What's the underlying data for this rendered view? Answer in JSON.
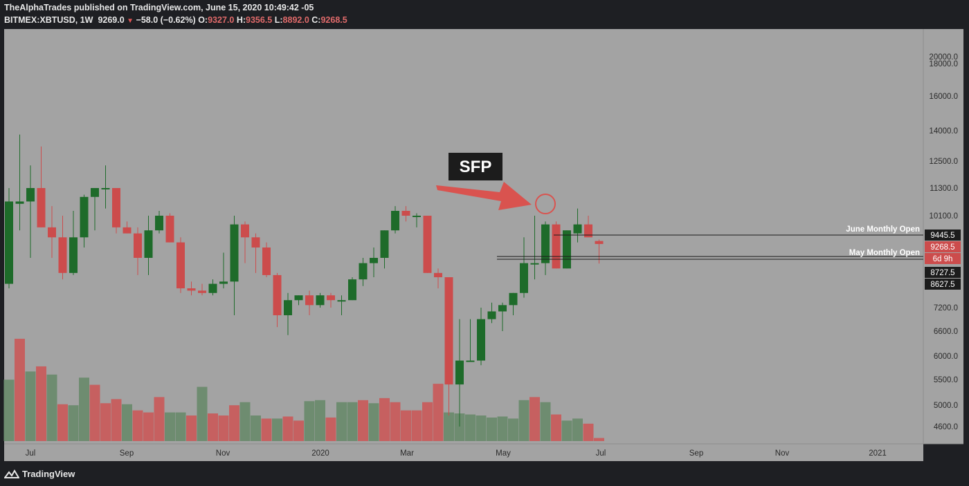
{
  "header": {
    "publisher": "TheAlphaTrades published on TradingView.com, June 15, 2020 10:49:42 -05",
    "symbol": "BITMEX:XBTUSD, 1W",
    "last": "9269.0",
    "change": "−58.0 (−0.62%)",
    "o_label": "O:",
    "o": "9327.0",
    "h_label": "H:",
    "h": "9356.5",
    "l_label": "L:",
    "l": "8892.0",
    "c_label": "C:",
    "c": "9268.5"
  },
  "footer": {
    "brand": "TradingView",
    "logo_icon": "tradingview-logo-icon"
  },
  "colors": {
    "background": "#a3a3a3",
    "up": "#1e6b2a",
    "down": "#cc4c4c",
    "vol_up": "#6e8c70",
    "vol_down": "#c66060",
    "axis_bg": "#a3a3a3",
    "annotation_arrow": "#d9534f"
  },
  "annotations": {
    "sfp_label": "SFP",
    "june_open_label": "June Monthly Open",
    "may_open_label": "May Monthly Open"
  },
  "chart_data": {
    "type": "candlestick",
    "price_axis_labels": [
      "20000.0",
      "18000.0",
      "16000.0",
      "14000.0",
      "12500.0",
      "11300.0",
      "10100.0",
      "7200.0",
      "6600.0",
      "6000.0",
      "5500.0",
      "5000.0",
      "4600.0"
    ],
    "price_badges": [
      {
        "text": "9445.5",
        "style": "dark"
      },
      {
        "text": "9268.5",
        "style": "red"
      },
      {
        "text": "6d 9h",
        "style": "red"
      },
      {
        "text": "8727.5",
        "style": "dark"
      },
      {
        "text": "8627.5",
        "style": "dark"
      }
    ],
    "time_axis_labels": [
      "Jul",
      "Sep",
      "Nov",
      "2020",
      "Mar",
      "May",
      "Jul",
      "Sep",
      "Nov",
      "2021"
    ],
    "levels": [
      {
        "name": "June Monthly Open",
        "value": 9445.5
      },
      {
        "name": "May Monthly Open",
        "value": 8727.5
      },
      {
        "name": "May Monthly Open low",
        "value": 8627.5
      }
    ],
    "candles": [
      {
        "o": 8200,
        "h": 11300,
        "l": 8000,
        "c": 10700
      },
      {
        "o": 10600,
        "h": 13800,
        "l": 9600,
        "c": 10700
      },
      {
        "o": 10700,
        "h": 12300,
        "l": 9000,
        "c": 11300
      },
      {
        "o": 11300,
        "h": 13200,
        "l": 9700,
        "c": 9700
      },
      {
        "o": 9700,
        "h": 10500,
        "l": 9000,
        "c": 9400
      },
      {
        "o": 9400,
        "h": 10100,
        "l": 8400,
        "c": 8700
      },
      {
        "o": 8700,
        "h": 10300,
        "l": 8600,
        "c": 9400
      },
      {
        "o": 9400,
        "h": 11000,
        "l": 9200,
        "c": 10900
      },
      {
        "o": 10900,
        "h": 11300,
        "l": 9600,
        "c": 11300
      },
      {
        "o": 11300,
        "h": 12300,
        "l": 10400,
        "c": 11300
      },
      {
        "o": 11300,
        "h": 11300,
        "l": 9500,
        "c": 9700
      },
      {
        "o": 9700,
        "h": 9900,
        "l": 9500,
        "c": 9500
      },
      {
        "o": 9500,
        "h": 9700,
        "l": 8600,
        "c": 9000
      },
      {
        "o": 9000,
        "h": 10100,
        "l": 8600,
        "c": 9600
      },
      {
        "o": 9600,
        "h": 10300,
        "l": 9500,
        "c": 10100
      },
      {
        "o": 10100,
        "h": 10200,
        "l": 9300,
        "c": 9300
      },
      {
        "o": 9300,
        "h": 9400,
        "l": 7800,
        "c": 8000
      },
      {
        "o": 8000,
        "h": 8300,
        "l": 7700,
        "c": 7900
      },
      {
        "o": 7900,
        "h": 8200,
        "l": 7700,
        "c": 7800
      },
      {
        "o": 7800,
        "h": 8400,
        "l": 7700,
        "c": 8200
      },
      {
        "o": 8200,
        "h": 9100,
        "l": 8000,
        "c": 8300
      },
      {
        "o": 8300,
        "h": 10100,
        "l": 7000,
        "c": 9800
      },
      {
        "o": 9800,
        "h": 9900,
        "l": 8900,
        "c": 9400
      },
      {
        "o": 9400,
        "h": 9500,
        "l": 8700,
        "c": 9200
      },
      {
        "o": 9200,
        "h": 9300,
        "l": 8500,
        "c": 8600
      },
      {
        "o": 8600,
        "h": 8700,
        "l": 6700,
        "c": 7000
      },
      {
        "o": 7000,
        "h": 7800,
        "l": 6500,
        "c": 7500
      },
      {
        "o": 7500,
        "h": 7700,
        "l": 7300,
        "c": 7700
      },
      {
        "o": 7700,
        "h": 7900,
        "l": 7000,
        "c": 7300
      },
      {
        "o": 7300,
        "h": 7800,
        "l": 7200,
        "c": 7700
      },
      {
        "o": 7700,
        "h": 7800,
        "l": 7200,
        "c": 7500
      },
      {
        "o": 7500,
        "h": 7700,
        "l": 7000,
        "c": 7500
      },
      {
        "o": 7500,
        "h": 8500,
        "l": 7500,
        "c": 8400
      },
      {
        "o": 8400,
        "h": 9000,
        "l": 8100,
        "c": 8900
      },
      {
        "o": 8900,
        "h": 9200,
        "l": 8500,
        "c": 9000
      },
      {
        "o": 9000,
        "h": 9600,
        "l": 8800,
        "c": 9600
      },
      {
        "o": 9600,
        "h": 10500,
        "l": 9500,
        "c": 10300
      },
      {
        "o": 10300,
        "h": 10500,
        "l": 9900,
        "c": 10100
      },
      {
        "o": 10100,
        "h": 10200,
        "l": 9700,
        "c": 10100
      },
      {
        "o": 10100,
        "h": 10100,
        "l": 8700,
        "c": 8700
      },
      {
        "o": 8700,
        "h": 8800,
        "l": 8000,
        "c": 8500
      },
      {
        "o": 8500,
        "h": 8500,
        "l": 4800,
        "c": 5400
      },
      {
        "o": 5400,
        "h": 6900,
        "l": 4600,
        "c": 5900
      },
      {
        "o": 5900,
        "h": 6900,
        "l": 5900,
        "c": 5900
      },
      {
        "o": 5900,
        "h": 7200,
        "l": 5800,
        "c": 6900
      },
      {
        "o": 6900,
        "h": 7400,
        "l": 6800,
        "c": 7100
      },
      {
        "o": 7100,
        "h": 7400,
        "l": 6600,
        "c": 7300
      },
      {
        "o": 7300,
        "h": 7800,
        "l": 7000,
        "c": 7800
      },
      {
        "o": 7800,
        "h": 9400,
        "l": 7600,
        "c": 8900
      },
      {
        "o": 8900,
        "h": 10100,
        "l": 8400,
        "c": 8900
      },
      {
        "o": 8900,
        "h": 9900,
        "l": 8600,
        "c": 9800
      },
      {
        "o": 9800,
        "h": 9900,
        "l": 8800,
        "c": 8800
      },
      {
        "o": 8800,
        "h": 9600,
        "l": 8800,
        "c": 9600
      },
      {
        "o": 9500,
        "h": 10400,
        "l": 9300,
        "c": 9800
      },
      {
        "o": 9800,
        "h": 10100,
        "l": 9400,
        "c": 9400
      },
      {
        "o": 9327,
        "h": 9356.5,
        "l": 8892,
        "c": 9268.5
      }
    ],
    "volume": [
      {
        "v": 0.6,
        "up": true
      },
      {
        "v": 1.0,
        "up": false
      },
      {
        "v": 0.68,
        "up": true
      },
      {
        "v": 0.73,
        "up": false
      },
      {
        "v": 0.65,
        "up": true
      },
      {
        "v": 0.36,
        "up": false
      },
      {
        "v": 0.35,
        "up": true
      },
      {
        "v": 0.62,
        "up": true
      },
      {
        "v": 0.55,
        "up": false
      },
      {
        "v": 0.37,
        "up": false
      },
      {
        "v": 0.41,
        "up": false
      },
      {
        "v": 0.36,
        "up": true
      },
      {
        "v": 0.3,
        "up": false
      },
      {
        "v": 0.28,
        "up": false
      },
      {
        "v": 0.43,
        "up": false
      },
      {
        "v": 0.28,
        "up": true
      },
      {
        "v": 0.28,
        "up": true
      },
      {
        "v": 0.25,
        "up": false
      },
      {
        "v": 0.53,
        "up": true
      },
      {
        "v": 0.27,
        "up": false
      },
      {
        "v": 0.25,
        "up": false
      },
      {
        "v": 0.35,
        "up": false
      },
      {
        "v": 0.38,
        "up": true
      },
      {
        "v": 0.25,
        "up": true
      },
      {
        "v": 0.22,
        "up": false
      },
      {
        "v": 0.22,
        "up": true
      },
      {
        "v": 0.24,
        "up": false
      },
      {
        "v": 0.2,
        "up": false
      },
      {
        "v": 0.39,
        "up": true
      },
      {
        "v": 0.4,
        "up": true
      },
      {
        "v": 0.23,
        "up": false
      },
      {
        "v": 0.38,
        "up": true
      },
      {
        "v": 0.38,
        "up": true
      },
      {
        "v": 0.4,
        "up": false
      },
      {
        "v": 0.37,
        "up": true
      },
      {
        "v": 0.42,
        "up": false
      },
      {
        "v": 0.38,
        "up": false
      },
      {
        "v": 0.3,
        "up": false
      },
      {
        "v": 0.3,
        "up": false
      },
      {
        "v": 0.38,
        "up": false
      },
      {
        "v": 0.56,
        "up": false
      },
      {
        "v": 0.28,
        "up": true
      },
      {
        "v": 0.27,
        "up": true
      },
      {
        "v": 0.26,
        "up": true
      },
      {
        "v": 0.25,
        "up": true
      },
      {
        "v": 0.23,
        "up": true
      },
      {
        "v": 0.24,
        "up": true
      },
      {
        "v": 0.22,
        "up": true
      },
      {
        "v": 0.4,
        "up": true
      },
      {
        "v": 0.43,
        "up": false
      },
      {
        "v": 0.38,
        "up": true
      },
      {
        "v": 0.26,
        "up": false
      },
      {
        "v": 0.2,
        "up": true
      },
      {
        "v": 0.22,
        "up": true
      },
      {
        "v": 0.17,
        "up": false
      },
      {
        "v": 0.03,
        "up": false
      }
    ]
  }
}
